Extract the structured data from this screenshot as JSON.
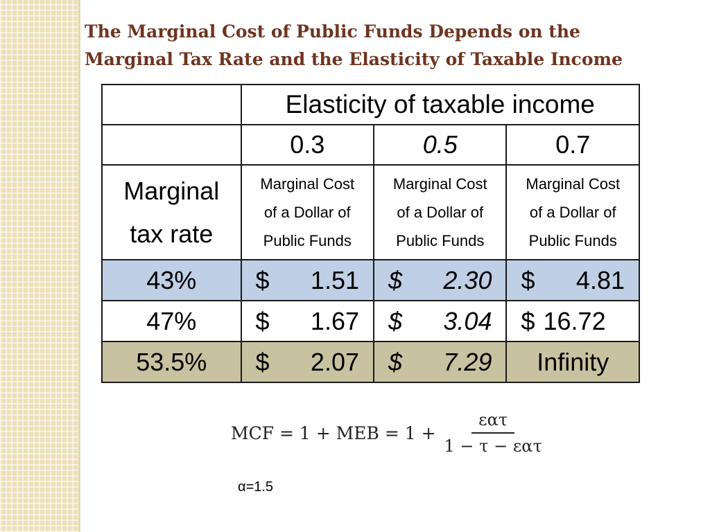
{
  "title": {
    "line1": "The Marginal Cost of Public Funds Depends on the",
    "line2": "Marginal Tax Rate and the Elasticity of Taxable Income"
  },
  "table": {
    "header": "Elasticity of taxable income",
    "elasticities": [
      "0.3",
      "0.5",
      "0.7"
    ],
    "row_header": {
      "line1": "Marginal",
      "line2": "tax rate"
    },
    "column_desc": {
      "line1": "Marginal Cost",
      "line2": "of a Dollar of",
      "line3": "Public Funds"
    },
    "currency_symbol": "$",
    "rows": [
      {
        "rate": "43%",
        "values": [
          "1.51",
          "2.30",
          "4.81"
        ],
        "color": "#bfcfe6"
      },
      {
        "rate": "47%",
        "values": [
          "1.67",
          "3.04",
          "16.72"
        ],
        "color": "#ffffff"
      },
      {
        "rate": "53.5%",
        "values": [
          "2.07",
          "7.29"
        ],
        "last_value": "Infinity",
        "color": "#c9c2a0"
      }
    ]
  },
  "formula": {
    "lhs": "MCF = 1 + MEB = 1 +",
    "numerator": "εατ",
    "denominator": "1 − τ − εατ"
  },
  "note": "α=1.5",
  "colors": {
    "title": "#6e3420",
    "border": "#1a1a1a",
    "side_pattern": "#ece0b8"
  }
}
